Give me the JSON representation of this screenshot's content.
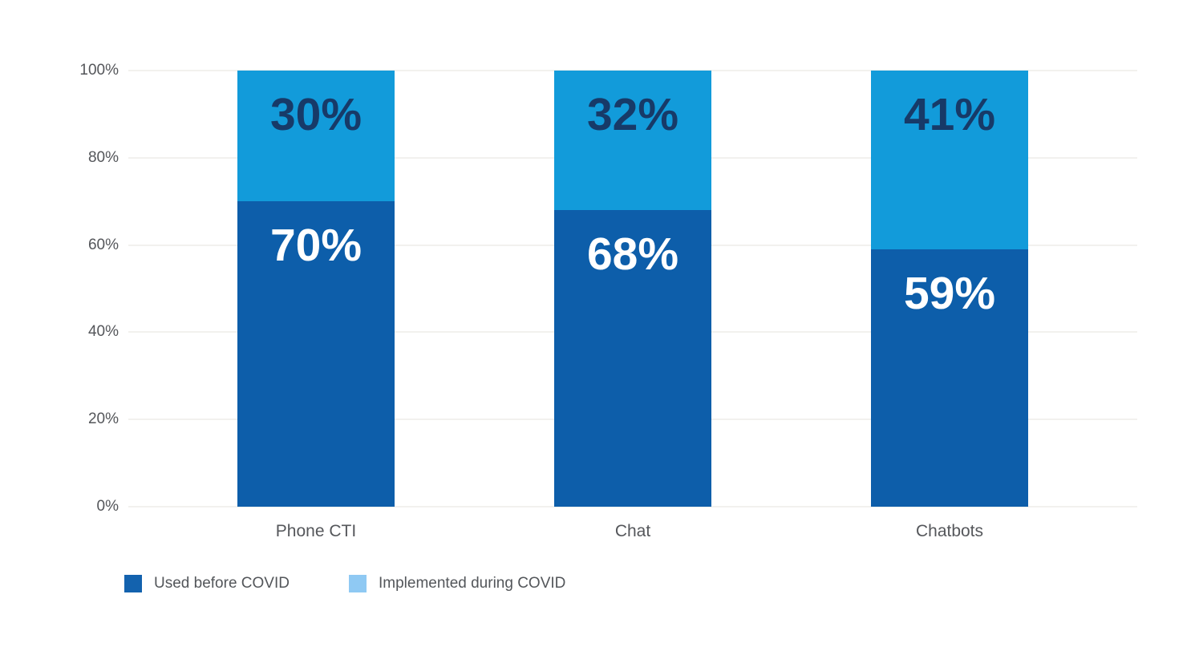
{
  "chart_data": {
    "type": "bar",
    "stacked": true,
    "title": "",
    "categories": [
      "Phone CTI",
      "Chat",
      "Chatbots"
    ],
    "series": [
      {
        "name": "Used before COVID",
        "values": [
          70,
          68,
          59
        ],
        "bar_color": "#0D5EAA",
        "label_color": "#FFFFFF",
        "legend_swatch_color": "#1362AE"
      },
      {
        "name": "Implemented during COVID",
        "values": [
          30,
          32,
          41
        ],
        "bar_color": "#129BDA",
        "label_color": "#173A68",
        "legend_swatch_color": "#8FC9F3"
      }
    ],
    "value_labels": [
      [
        "70%",
        "68%",
        "59%"
      ],
      [
        "30%",
        "32%",
        "41%"
      ]
    ],
    "yticks": [
      "0%",
      "20%",
      "40%",
      "60%",
      "80%",
      "100%"
    ],
    "ylim": [
      0,
      100
    ],
    "grid": true,
    "legend_position": "bottom-left"
  },
  "colors": {
    "background": "#FFFFFF",
    "gridline": "#F2F1EE",
    "tick_label": "#54565A",
    "category_label": "#55575B"
  }
}
